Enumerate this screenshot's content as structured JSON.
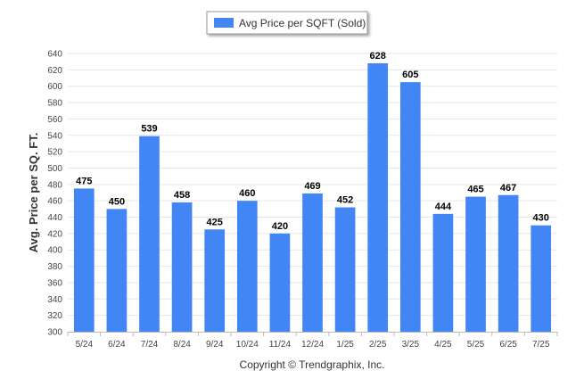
{
  "chart_data": {
    "type": "bar",
    "categories": [
      "5/24",
      "6/24",
      "7/24",
      "8/24",
      "9/24",
      "10/24",
      "11/24",
      "12/24",
      "1/25",
      "2/25",
      "3/25",
      "4/25",
      "5/25",
      "6/25",
      "7/25"
    ],
    "series": [
      {
        "name": "Avg Price per SQFT (Sold)",
        "values": [
          475,
          450,
          539,
          458,
          425,
          460,
          420,
          469,
          452,
          628,
          605,
          444,
          465,
          467,
          430
        ],
        "color": "#4285f4"
      }
    ],
    "xlabel": "",
    "ylabel": "Avg. Price per SQ. FT.",
    "ylim": [
      300,
      640
    ],
    "yticks": [
      300,
      320,
      340,
      360,
      380,
      400,
      420,
      440,
      460,
      480,
      500,
      520,
      540,
      560,
      580,
      600,
      620,
      640
    ],
    "grid": true,
    "legend_position": "top-center",
    "data_labels": true
  },
  "footer": {
    "copyright": "Copyright © Trendgraphix, Inc."
  }
}
